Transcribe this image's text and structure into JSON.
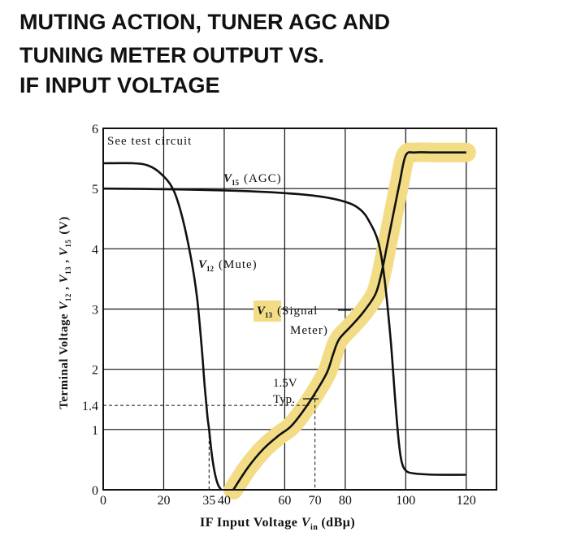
{
  "title_lines": [
    "MUTING ACTION, TUNER AGC AND",
    "TUNING METER OUTPUT VS.",
    "IF  INPUT VOLTAGE"
  ],
  "colors": {
    "ink": "#111111",
    "highlight": "#f3dc86"
  },
  "chart_data": {
    "type": "line",
    "xlabel": "IF Input Voltage V_in (dBμ)",
    "ylabel": "Terminal Voltage V_12 , V_13 , V_15 (V)",
    "xlim": [
      0,
      130
    ],
    "ylim": [
      0,
      6
    ],
    "xticks": [
      {
        "value": 0,
        "label": "0"
      },
      {
        "value": 20,
        "label": "20"
      },
      {
        "value": 35,
        "label": "35"
      },
      {
        "value": 40,
        "label": "40"
      },
      {
        "value": 60,
        "label": "60"
      },
      {
        "value": 70,
        "label": "70"
      },
      {
        "value": 80,
        "label": "80"
      },
      {
        "value": 100,
        "label": "100"
      },
      {
        "value": 120,
        "label": "120"
      }
    ],
    "yticks": [
      {
        "value": 0,
        "label": "0"
      },
      {
        "value": 1,
        "label": "1"
      },
      {
        "value": 1.4,
        "label": "1.4"
      },
      {
        "value": 2,
        "label": "2"
      },
      {
        "value": 3,
        "label": "3"
      },
      {
        "value": 4,
        "label": "4"
      },
      {
        "value": 5,
        "label": "5"
      },
      {
        "value": 6,
        "label": "6"
      }
    ],
    "grid": true,
    "annotations": {
      "corner_note": "See test circuit",
      "typ_line1": "1.5V",
      "typ_line2": "Typ."
    },
    "series": [
      {
        "label_main": "V",
        "label_sub": "15",
        "label_rest": "(AGC)",
        "highlighted": false,
        "points": [
          [
            0,
            5.0
          ],
          [
            20,
            4.99
          ],
          [
            40,
            4.97
          ],
          [
            55,
            4.94
          ],
          [
            70,
            4.88
          ],
          [
            80,
            4.78
          ],
          [
            85,
            4.65
          ],
          [
            88,
            4.45
          ],
          [
            91,
            4.1
          ],
          [
            93,
            3.5
          ],
          [
            95,
            2.5
          ],
          [
            96.5,
            1.5
          ],
          [
            97.5,
            0.9
          ],
          [
            98.5,
            0.5
          ],
          [
            100,
            0.32
          ],
          [
            103,
            0.27
          ],
          [
            110,
            0.25
          ],
          [
            120,
            0.25
          ]
        ]
      },
      {
        "label_main": "V",
        "label_sub": "12",
        "label_rest": "(Mute)",
        "highlighted": false,
        "points": [
          [
            0,
            5.42
          ],
          [
            10,
            5.42
          ],
          [
            15,
            5.38
          ],
          [
            19,
            5.25
          ],
          [
            23,
            5.0
          ],
          [
            26,
            4.55
          ],
          [
            29,
            3.85
          ],
          [
            31,
            3.2
          ],
          [
            32.5,
            2.4
          ],
          [
            33.5,
            1.75
          ],
          [
            34.5,
            1.2
          ],
          [
            35,
            1.0
          ],
          [
            36,
            0.55
          ],
          [
            37,
            0.25
          ],
          [
            38,
            0.08
          ],
          [
            39,
            0.0
          ]
        ]
      },
      {
        "label_main": "V",
        "label_sub": "13",
        "label_rest1": "(Signal",
        "label_rest2": "Meter)",
        "highlighted": true,
        "points": [
          [
            43,
            0.0
          ],
          [
            48,
            0.38
          ],
          [
            53,
            0.68
          ],
          [
            58,
            0.9
          ],
          [
            62,
            1.05
          ],
          [
            66,
            1.3
          ],
          [
            70,
            1.6
          ],
          [
            74,
            1.95
          ],
          [
            76,
            2.25
          ],
          [
            78,
            2.5
          ],
          [
            82,
            2.72
          ],
          [
            86,
            2.95
          ],
          [
            90,
            3.25
          ],
          [
            92,
            3.6
          ],
          [
            94,
            4.1
          ],
          [
            96,
            4.6
          ],
          [
            98,
            5.1
          ],
          [
            100,
            5.55
          ],
          [
            103,
            5.6
          ],
          [
            110,
            5.6
          ],
          [
            120,
            5.6
          ]
        ]
      }
    ]
  }
}
